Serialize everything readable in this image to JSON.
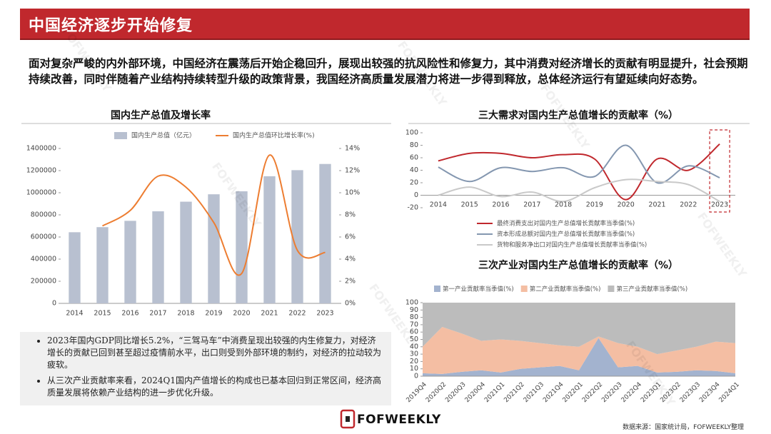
{
  "header": {
    "title": "中国经济逐步开始修复"
  },
  "intro": "面对复杂严峻的内外部环境，中国经济在震荡后开始企稳回升，展现出较强的抗风险性和修复力，其中消费对经济增长的贡献有明显提升，社会预期持续改善，同时伴随着产业结构持续转型升级的政策背景，我国经济高质量发展潜力将进一步得到释放，总体经济运行有望延续向好态势。",
  "chart_data": [
    {
      "type": "bar",
      "title": "国内生产总值及增长率",
      "categories": [
        "2014",
        "2015",
        "2016",
        "2017",
        "2018",
        "2019",
        "2020",
        "2021",
        "2022",
        "2023"
      ],
      "series": [
        {
          "name": "国内生产总值（亿元）",
          "color": "#b8c0d0",
          "values": [
            643000,
            689000,
            746000,
            832000,
            919000,
            986000,
            1013000,
            1149000,
            1204000,
            1260000
          ]
        },
        {
          "name": "国内生产总值环比增长率(%)",
          "color": "#ed7d31",
          "type": "line",
          "axis": "y2",
          "values": [
            null,
            7.0,
            8.4,
            11.5,
            10.5,
            7.3,
            2.7,
            13.4,
            4.8,
            4.6
          ]
        }
      ],
      "ylim": [
        0,
        1400000
      ],
      "yticks": [
        0,
        200000,
        400000,
        600000,
        800000,
        1000000,
        1200000,
        1400000
      ],
      "y2lim": [
        0,
        14
      ],
      "y2ticks": [
        {
          "value": 0,
          "label": "0%"
        },
        {
          "value": 2,
          "label": "2%"
        },
        {
          "value": 4,
          "label": "4%"
        },
        {
          "value": 6,
          "label": "6%"
        },
        {
          "value": 8,
          "label": "8%"
        },
        {
          "value": 10,
          "label": "10%"
        },
        {
          "value": 12,
          "label": "12%"
        },
        {
          "value": 14,
          "label": "14%"
        }
      ],
      "legend": "top"
    },
    {
      "type": "line",
      "title": "三大需求对国内生产总值增长的贡献率（%）",
      "categories": [
        "2014",
        "2015",
        "2016",
        "2017",
        "2018",
        "2019",
        "2020",
        "2021",
        "2022",
        "2023"
      ],
      "series": [
        {
          "name": "最终消费支出对国内生产总值增长贡献率当季值(%)",
          "color": "#c0282d",
          "values": [
            55,
            67,
            67,
            60,
            65,
            58,
            -7,
            58,
            40,
            82
          ]
        },
        {
          "name": "资本形成总额对国内生产总值增长贡献率当季值(%)",
          "color": "#8497b0",
          "values": [
            45,
            22,
            44,
            38,
            44,
            30,
            80,
            20,
            47,
            28
          ]
        },
        {
          "name": "货物和服务净出口对国内生产总值增长贡献率当季值(%)",
          "color": "#c9c9c9",
          "values": [
            0,
            13,
            -2,
            5,
            -10,
            12,
            25,
            22,
            17,
            -10
          ]
        }
      ],
      "ylim": [
        -20,
        100
      ],
      "yticks": [
        -20,
        0,
        20,
        40,
        60,
        80,
        100
      ],
      "legend": "bottom"
    },
    {
      "type": "area",
      "title": "三次产业对国内生产总值增长的贡献率（%）",
      "categories": [
        "2019Q4",
        "2020Q2",
        "2020Q3",
        "2020Q4",
        "2021Q1",
        "2021Q2",
        "2021Q3",
        "2021Q4",
        "2022Q1",
        "2022Q2",
        "2022Q3",
        "2022Q4",
        "2023Q1",
        "2023Q2",
        "2023Q3",
        "2023Q4",
        "2024Q1"
      ],
      "series": [
        {
          "name": "第一产业贡献率当季值(%)",
          "color": "#a3b3cf",
          "values": [
            4,
            3,
            6,
            8,
            5,
            10,
            12,
            14,
            8,
            52,
            12,
            14,
            5,
            6,
            8,
            7,
            4
          ]
        },
        {
          "name": "第二产业贡献率当季值(%)",
          "color": "#f4bea3",
          "values": [
            36,
            64,
            52,
            40,
            45,
            38,
            33,
            28,
            32,
            2,
            33,
            26,
            25,
            29,
            32,
            40,
            41
          ]
        },
        {
          "name": "第三产业贡献率当季值(%)",
          "color": "#bcbcbc",
          "values": [
            60,
            33,
            42,
            52,
            50,
            52,
            55,
            58,
            60,
            46,
            55,
            60,
            70,
            65,
            60,
            53,
            55
          ]
        }
      ],
      "ylim": [
        0,
        100
      ],
      "yticks": [
        0,
        10,
        20,
        30,
        40,
        50,
        60,
        70,
        80,
        90,
        100
      ],
      "stacked": true,
      "legend": "top"
    }
  ],
  "bullets": [
    "2023年国内GDP同比增长5.2%，“三驾马车”中消费呈现出较强的内生修复力，对经济增长的贡献已回到甚至超过疫情前水平，出口则受到外部环境的制约，对经济的拉动较为疲软。",
    "从三次产业贡献率来看，2024Q1国内产值增长的构成也已基本回归到正常区间，经济高质量发展将依赖产业结构的进一步优化升级。"
  ],
  "footer": {
    "logo": "FOFWEEKLY",
    "source": "数据来源：国家统计局，FOFWEEKLY整理"
  },
  "watermark": "FOFWEEKLY"
}
